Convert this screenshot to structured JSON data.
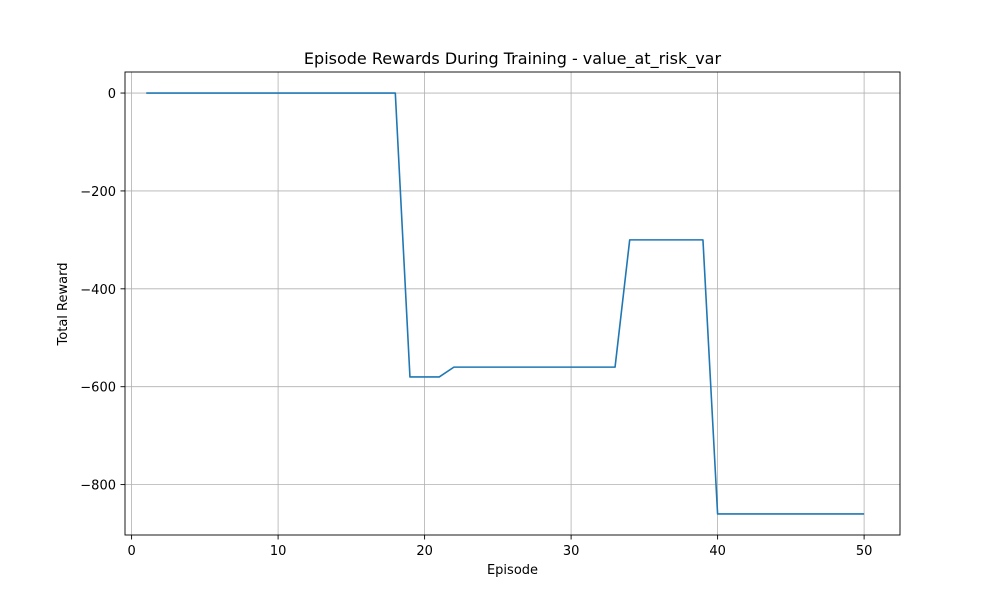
{
  "chart_data": {
    "type": "line",
    "title": "Episode Rewards During Training - value_at_risk_var",
    "xlabel": "Episode",
    "ylabel": "Total Reward",
    "xlim": [
      -0.45,
      52.45
    ],
    "ylim": [
      -903,
      43
    ],
    "xticks": [
      0,
      10,
      20,
      30,
      40,
      50
    ],
    "yticks": [
      0,
      -200,
      -400,
      -600,
      -800
    ],
    "xtick_labels": [
      "0",
      "10",
      "20",
      "30",
      "40",
      "50"
    ],
    "ytick_labels": [
      "0",
      "−200",
      "−400",
      "−600",
      "−800"
    ],
    "grid": true,
    "series": [
      {
        "color": "#1f77b4",
        "x": [
          1,
          2,
          3,
          4,
          5,
          6,
          7,
          8,
          9,
          10,
          11,
          12,
          13,
          14,
          15,
          16,
          17,
          18,
          19,
          20,
          21,
          22,
          23,
          24,
          25,
          26,
          27,
          28,
          29,
          30,
          31,
          32,
          33,
          34,
          35,
          36,
          37,
          38,
          39,
          40,
          41,
          42,
          43,
          44,
          45,
          46,
          47,
          48,
          49,
          50
        ],
        "values": [
          0,
          0,
          0,
          0,
          0,
          0,
          0,
          0,
          0,
          0,
          0,
          0,
          0,
          0,
          0,
          0,
          0,
          0,
          -580,
          -580,
          -580,
          -560,
          -560,
          -560,
          -560,
          -560,
          -560,
          -560,
          -560,
          -560,
          -560,
          -560,
          -560,
          -300,
          -300,
          -300,
          -300,
          -300,
          -300,
          -860,
          -860,
          -860,
          -860,
          -860,
          -860,
          -860,
          -860,
          -860,
          -860,
          -860
        ]
      }
    ]
  }
}
